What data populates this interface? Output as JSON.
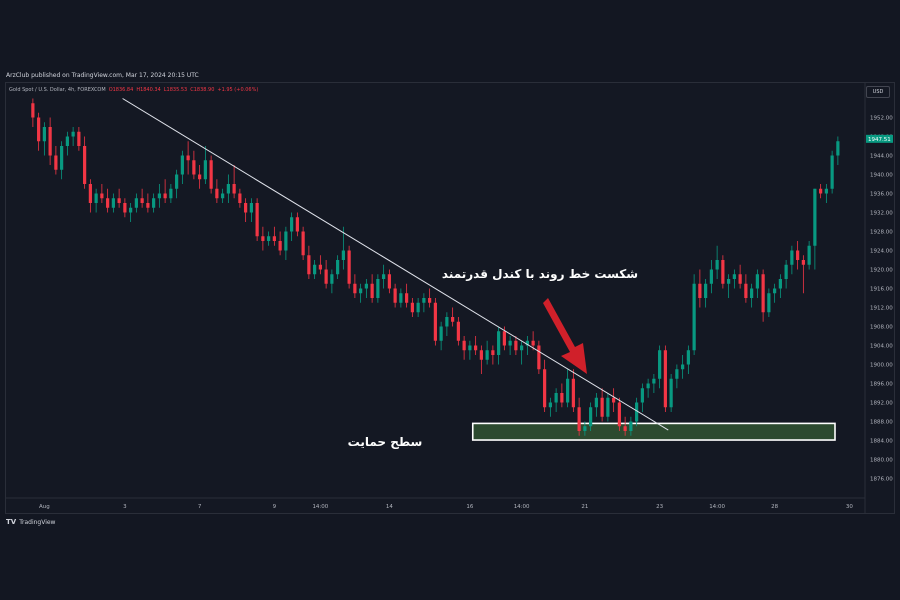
{
  "header": {
    "caption": "ArzClub published on TradingView.com, Mar 17, 2024 20:15 UTC",
    "symbol": "Gold Spot / U.S. Dollar, 4h, FOREXCOM",
    "open": "O1836.84",
    "high": "H1840.34",
    "low": "L1835.53",
    "close": "C1838.90",
    "change": "+1.95 (+0.06%)",
    "currency": "USD"
  },
  "footer": {
    "brand": "TradingView",
    "logo": "TV"
  },
  "colors": {
    "up": "#089981",
    "down": "#f23645",
    "background": "#131722",
    "zone_fill": "#2c4a2f"
  },
  "chart_data": {
    "type": "candlestick",
    "interval": "4h",
    "ylim": [
      1874,
      1956
    ],
    "price_ticks": [
      1952.0,
      1948.0,
      1944.0,
      1940.0,
      1936.0,
      1932.0,
      1928.0,
      1924.0,
      1920.0,
      1916.0,
      1912.0,
      1908.0,
      1904.0,
      1900.0,
      1896.0,
      1892.0,
      1888.0,
      1884.0,
      1880.0,
      1876.0
    ],
    "current_price": "1947.51",
    "time_labels": [
      {
        "i": 2,
        "label": "Aug"
      },
      {
        "i": 16,
        "label": "3"
      },
      {
        "i": 29,
        "label": "7"
      },
      {
        "i": 42,
        "label": "9"
      },
      {
        "i": 50,
        "label": "14:00"
      },
      {
        "i": 62,
        "label": "14"
      },
      {
        "i": 76,
        "label": "16"
      },
      {
        "i": 85,
        "label": "14:00"
      },
      {
        "i": 96,
        "label": "21"
      },
      {
        "i": 109,
        "label": "23"
      },
      {
        "i": 119,
        "label": "14:00"
      },
      {
        "i": 129,
        "label": "28"
      },
      {
        "i": 142,
        "label": "30"
      }
    ],
    "candles": [
      [
        1955,
        1956,
        1950,
        1952
      ],
      [
        1952,
        1953,
        1945,
        1947
      ],
      [
        1947,
        1951,
        1944,
        1950
      ],
      [
        1950,
        1952,
        1942,
        1944
      ],
      [
        1944,
        1946,
        1940,
        1941
      ],
      [
        1941,
        1947,
        1939,
        1946
      ],
      [
        1946,
        1949,
        1944,
        1948
      ],
      [
        1948,
        1950,
        1946,
        1949
      ],
      [
        1949,
        1950,
        1945,
        1946
      ],
      [
        1946,
        1948,
        1937,
        1938
      ],
      [
        1938,
        1939,
        1932,
        1934
      ],
      [
        1934,
        1937,
        1932,
        1936
      ],
      [
        1936,
        1938,
        1934,
        1935
      ],
      [
        1935,
        1937,
        1932,
        1933
      ],
      [
        1933,
        1936,
        1932,
        1935
      ],
      [
        1935,
        1937,
        1933,
        1934
      ],
      [
        1934,
        1935,
        1931,
        1932
      ],
      [
        1932,
        1934,
        1930,
        1933
      ],
      [
        1933,
        1936,
        1932,
        1935
      ],
      [
        1935,
        1937,
        1933,
        1934
      ],
      [
        1934,
        1936,
        1932,
        1933
      ],
      [
        1933,
        1936,
        1932,
        1935
      ],
      [
        1935,
        1938,
        1933,
        1936
      ],
      [
        1936,
        1939,
        1934,
        1935
      ],
      [
        1935,
        1938,
        1934,
        1937
      ],
      [
        1937,
        1941,
        1935,
        1940
      ],
      [
        1940,
        1945,
        1938,
        1944
      ],
      [
        1944,
        1947,
        1940,
        1943
      ],
      [
        1943,
        1945,
        1939,
        1940
      ],
      [
        1940,
        1942,
        1937,
        1939
      ],
      [
        1939,
        1946,
        1938,
        1943
      ],
      [
        1943,
        1944,
        1936,
        1937
      ],
      [
        1937,
        1939,
        1934,
        1935
      ],
      [
        1935,
        1937,
        1934,
        1936
      ],
      [
        1936,
        1940,
        1934,
        1938
      ],
      [
        1938,
        1942,
        1935,
        1936
      ],
      [
        1936,
        1937,
        1933,
        1934
      ],
      [
        1934,
        1935,
        1930,
        1932
      ],
      [
        1932,
        1935,
        1930,
        1934
      ],
      [
        1934,
        1935,
        1926,
        1927
      ],
      [
        1927,
        1929,
        1924,
        1926
      ],
      [
        1926,
        1928,
        1925,
        1927
      ],
      [
        1927,
        1929,
        1925,
        1926
      ],
      [
        1926,
        1928,
        1923,
        1924
      ],
      [
        1924,
        1929,
        1922,
        1928
      ],
      [
        1928,
        1932,
        1926,
        1931
      ],
      [
        1931,
        1932,
        1927,
        1928
      ],
      [
        1928,
        1929,
        1922,
        1923
      ],
      [
        1923,
        1925,
        1918,
        1919
      ],
      [
        1919,
        1922,
        1918,
        1921
      ],
      [
        1921,
        1923,
        1919,
        1920
      ],
      [
        1920,
        1922,
        1916,
        1917
      ],
      [
        1917,
        1920,
        1915,
        1919
      ],
      [
        1919,
        1923,
        1918,
        1922
      ],
      [
        1922,
        1929,
        1920,
        1924
      ],
      [
        1924,
        1925,
        1916,
        1917
      ],
      [
        1917,
        1919,
        1914,
        1915
      ],
      [
        1915,
        1917,
        1913,
        1916
      ],
      [
        1916,
        1918,
        1914,
        1917
      ],
      [
        1917,
        1919,
        1913,
        1914
      ],
      [
        1914,
        1919,
        1913,
        1918
      ],
      [
        1918,
        1921,
        1916,
        1919
      ],
      [
        1919,
        1920,
        1915,
        1916
      ],
      [
        1916,
        1917,
        1912,
        1913
      ],
      [
        1913,
        1916,
        1912,
        1915
      ],
      [
        1915,
        1917,
        1912,
        1913
      ],
      [
        1913,
        1914,
        1910,
        1911
      ],
      [
        1911,
        1914,
        1910,
        1913
      ],
      [
        1913,
        1915,
        1911,
        1914
      ],
      [
        1914,
        1916,
        1912,
        1913
      ],
      [
        1913,
        1914,
        1904,
        1905
      ],
      [
        1905,
        1909,
        1903,
        1908
      ],
      [
        1908,
        1911,
        1906,
        1910
      ],
      [
        1910,
        1912,
        1908,
        1909
      ],
      [
        1909,
        1910,
        1904,
        1905
      ],
      [
        1905,
        1906,
        1901,
        1903
      ],
      [
        1903,
        1905,
        1901,
        1904
      ],
      [
        1904,
        1906,
        1902,
        1903
      ],
      [
        1903,
        1904,
        1898,
        1901
      ],
      [
        1901,
        1905,
        1900,
        1903
      ],
      [
        1903,
        1904,
        1900,
        1902
      ],
      [
        1902,
        1908,
        1900,
        1907
      ],
      [
        1907,
        1908,
        1903,
        1904
      ],
      [
        1904,
        1906,
        1902,
        1905
      ],
      [
        1905,
        1906,
        1902,
        1903
      ],
      [
        1903,
        1905,
        1900,
        1904
      ],
      [
        1904,
        1906,
        1902,
        1905
      ],
      [
        1905,
        1907,
        1903,
        1904
      ],
      [
        1904,
        1905,
        1898,
        1899
      ],
      [
        1899,
        1901,
        1890,
        1891
      ],
      [
        1891,
        1893,
        1889,
        1892
      ],
      [
        1892,
        1895,
        1890,
        1894
      ],
      [
        1894,
        1896,
        1891,
        1892
      ],
      [
        1892,
        1899,
        1891,
        1897
      ],
      [
        1897,
        1899,
        1890,
        1891
      ],
      [
        1891,
        1893,
        1885,
        1886
      ],
      [
        1886,
        1888,
        1885,
        1887
      ],
      [
        1887,
        1892,
        1886,
        1891
      ],
      [
        1891,
        1894,
        1889,
        1893
      ],
      [
        1893,
        1895,
        1888,
        1889
      ],
      [
        1889,
        1894,
        1888,
        1893
      ],
      [
        1893,
        1895,
        1890,
        1892
      ],
      [
        1892,
        1893,
        1886,
        1887
      ],
      [
        1887,
        1889,
        1885,
        1886
      ],
      [
        1886,
        1889,
        1885,
        1888
      ],
      [
        1888,
        1893,
        1887,
        1892
      ],
      [
        1892,
        1896,
        1890,
        1895
      ],
      [
        1895,
        1897,
        1893,
        1896
      ],
      [
        1896,
        1898,
        1894,
        1897
      ],
      [
        1897,
        1904,
        1895,
        1903
      ],
      [
        1903,
        1904,
        1890,
        1891
      ],
      [
        1891,
        1898,
        1890,
        1897
      ],
      [
        1897,
        1900,
        1895,
        1899
      ],
      [
        1899,
        1902,
        1897,
        1900
      ],
      [
        1900,
        1904,
        1898,
        1903
      ],
      [
        1903,
        1919,
        1902,
        1917
      ],
      [
        1917,
        1920,
        1912,
        1914
      ],
      [
        1914,
        1918,
        1912,
        1917
      ],
      [
        1917,
        1922,
        1915,
        1920
      ],
      [
        1920,
        1925,
        1918,
        1922
      ],
      [
        1922,
        1923,
        1916,
        1917
      ],
      [
        1917,
        1919,
        1914,
        1918
      ],
      [
        1918,
        1920,
        1916,
        1919
      ],
      [
        1919,
        1921,
        1916,
        1917
      ],
      [
        1917,
        1919,
        1913,
        1914
      ],
      [
        1914,
        1917,
        1912,
        1916
      ],
      [
        1916,
        1920,
        1914,
        1919
      ],
      [
        1919,
        1920,
        1909,
        1911
      ],
      [
        1911,
        1916,
        1910,
        1915
      ],
      [
        1915,
        1917,
        1913,
        1916
      ],
      [
        1916,
        1919,
        1914,
        1918
      ],
      [
        1918,
        1922,
        1916,
        1921
      ],
      [
        1921,
        1925,
        1919,
        1924
      ],
      [
        1924,
        1926,
        1920,
        1922
      ],
      [
        1922,
        1923,
        1915,
        1921
      ],
      [
        1921,
        1926,
        1920,
        1925
      ],
      [
        1925,
        1937,
        1920,
        1937
      ],
      [
        1937,
        1938,
        1935,
        1936
      ],
      [
        1936,
        1938,
        1934,
        1937
      ],
      [
        1937,
        1945,
        1936,
        1944
      ],
      [
        1944,
        1948,
        1942,
        1947
      ]
    ],
    "trendline": {
      "from": {
        "i": 15.6,
        "price": 1956
      },
      "to": {
        "i": 110.5,
        "price": 1886.2
      }
    },
    "support_zone": {
      "i_start": 77,
      "i_end": 139,
      "price_top": 1887.6,
      "price_bottom": 1884.1
    },
    "annotations": [
      {
        "text": "شکست خط روند با کندل قدرتمند"
      },
      {
        "text": "سطح حمایت"
      }
    ]
  }
}
